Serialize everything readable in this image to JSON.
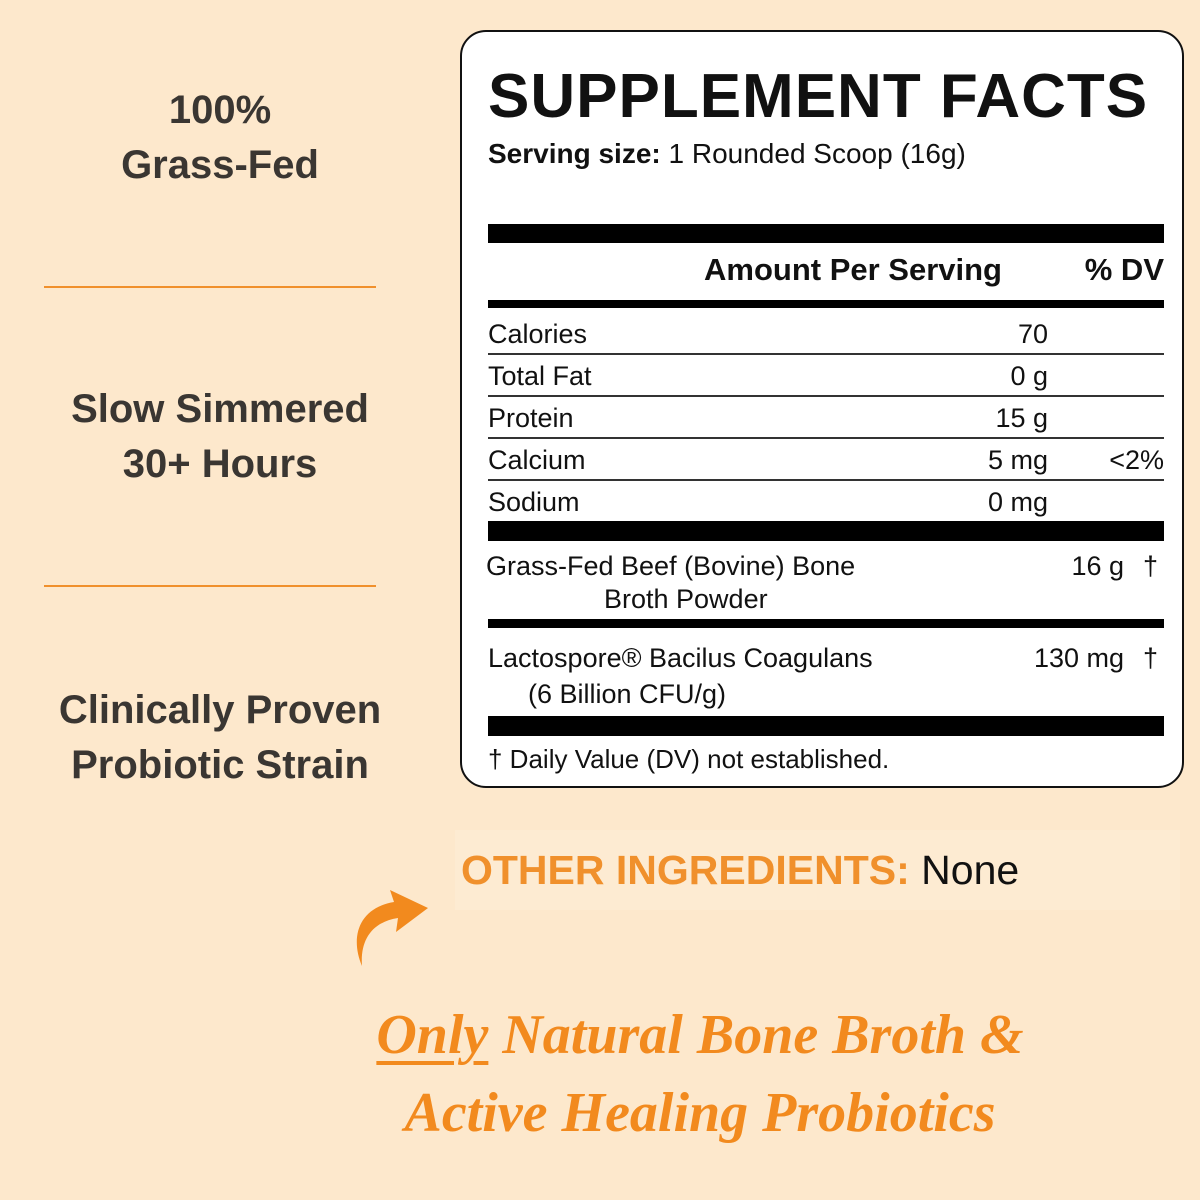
{
  "features": [
    {
      "line1": "100%",
      "line2": "Grass-Fed"
    },
    {
      "line1": "Slow Simmered",
      "line2": "30+ Hours"
    },
    {
      "line1": "Clinically Proven",
      "line2": "Probiotic Strain"
    }
  ],
  "label": {
    "title": "SUPPLEMENT FACTS",
    "serving_label": "Serving size:",
    "serving_value": "1 Rounded Scoop (16g)",
    "header_amount": "Amount Per Serving",
    "header_dv": "% DV",
    "rows": [
      {
        "name": "Calories",
        "amount": "70",
        "dv": ""
      },
      {
        "name": "Total Fat",
        "amount": "0 g",
        "dv": ""
      },
      {
        "name": "Protein",
        "amount": "15 g",
        "dv": ""
      },
      {
        "name": "Calcium",
        "amount": "5 mg",
        "dv": "<2%"
      },
      {
        "name": "Sodium",
        "amount": "0 mg",
        "dv": ""
      }
    ],
    "ingredients": [
      {
        "line1": "Grass-Fed Beef (Bovine) Bone",
        "line2": "Broth Powder",
        "amount": "16 g",
        "dv": "†"
      },
      {
        "line1": "Lactospore® Bacilus Coagulans",
        "line2": "(6 Billion CFU/g)",
        "amount": "130 mg",
        "dv": "†"
      }
    ],
    "footnote": "† Daily Value (DV) not established."
  },
  "other": {
    "label": "OTHER INGREDIENTS:",
    "value": "None"
  },
  "tagline": {
    "emph": "Only",
    "line1_rest": " Natural Bone Broth &",
    "line2": "Active Healing Probiotics"
  },
  "colors": {
    "background": "#fde8cc",
    "accent": "#f0902c",
    "text": "#3a3632"
  },
  "icons": {
    "arrow": "curved-arrow-icon"
  }
}
